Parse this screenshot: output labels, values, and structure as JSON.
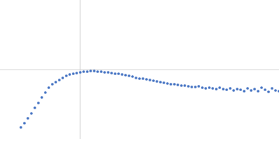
{
  "chart_data": {
    "type": "scatter",
    "x": [
      -0.85,
      -0.8,
      -0.75,
      -0.7,
      -0.65,
      -0.6,
      -0.55,
      -0.5,
      -0.45,
      -0.4,
      -0.35,
      -0.3,
      -0.25,
      -0.2,
      -0.15,
      -0.1,
      -0.05,
      0,
      0.05,
      0.1,
      0.15,
      0.2,
      0.25,
      0.3,
      0.35,
      0.4,
      0.45,
      0.5,
      0.55,
      0.6,
      0.65,
      0.7,
      0.75,
      0.8,
      0.85,
      0.9,
      0.95,
      1,
      1.05,
      1.1,
      1.15,
      1.2,
      1.25,
      1.3,
      1.35,
      1.4,
      1.45,
      1.5,
      1.55,
      1.6,
      1.65,
      1.7,
      1.75,
      1.8,
      1.85,
      1.9,
      1.95,
      2,
      2.05,
      2.1,
      2.15,
      2.2,
      2.25,
      2.3,
      2.35,
      2.4,
      2.45,
      2.5,
      2.55,
      2.6,
      2.65,
      2.7,
      2.75,
      2.8,
      2.85
    ],
    "values": [
      -0.83,
      -0.77,
      -0.7,
      -0.63,
      -0.55,
      -0.48,
      -0.4,
      -0.33,
      -0.26,
      -0.21,
      -0.18,
      -0.15,
      -0.12,
      -0.09,
      -0.07,
      -0.06,
      -0.05,
      -0.04,
      -0.03,
      -0.03,
      -0.02,
      -0.02,
      -0.03,
      -0.03,
      -0.04,
      -0.04,
      -0.05,
      -0.06,
      -0.06,
      -0.07,
      -0.08,
      -0.09,
      -0.1,
      -0.12,
      -0.13,
      -0.13,
      -0.14,
      -0.15,
      -0.16,
      -0.17,
      -0.18,
      -0.19,
      -0.2,
      -0.21,
      -0.21,
      -0.22,
      -0.23,
      -0.23,
      -0.24,
      -0.25,
      -0.25,
      -0.24,
      -0.26,
      -0.27,
      -0.26,
      -0.27,
      -0.28,
      -0.26,
      -0.28,
      -0.29,
      -0.27,
      -0.3,
      -0.28,
      -0.29,
      -0.31,
      -0.27,
      -0.3,
      -0.28,
      -0.31,
      -0.26,
      -0.29,
      -0.32,
      -0.27,
      -0.3,
      -0.31
    ],
    "color": "#3a6bbf",
    "xlim": [
      -1.15,
      2.85
    ],
    "ylim": [
      -1,
      1
    ],
    "zero_lines": true
  }
}
